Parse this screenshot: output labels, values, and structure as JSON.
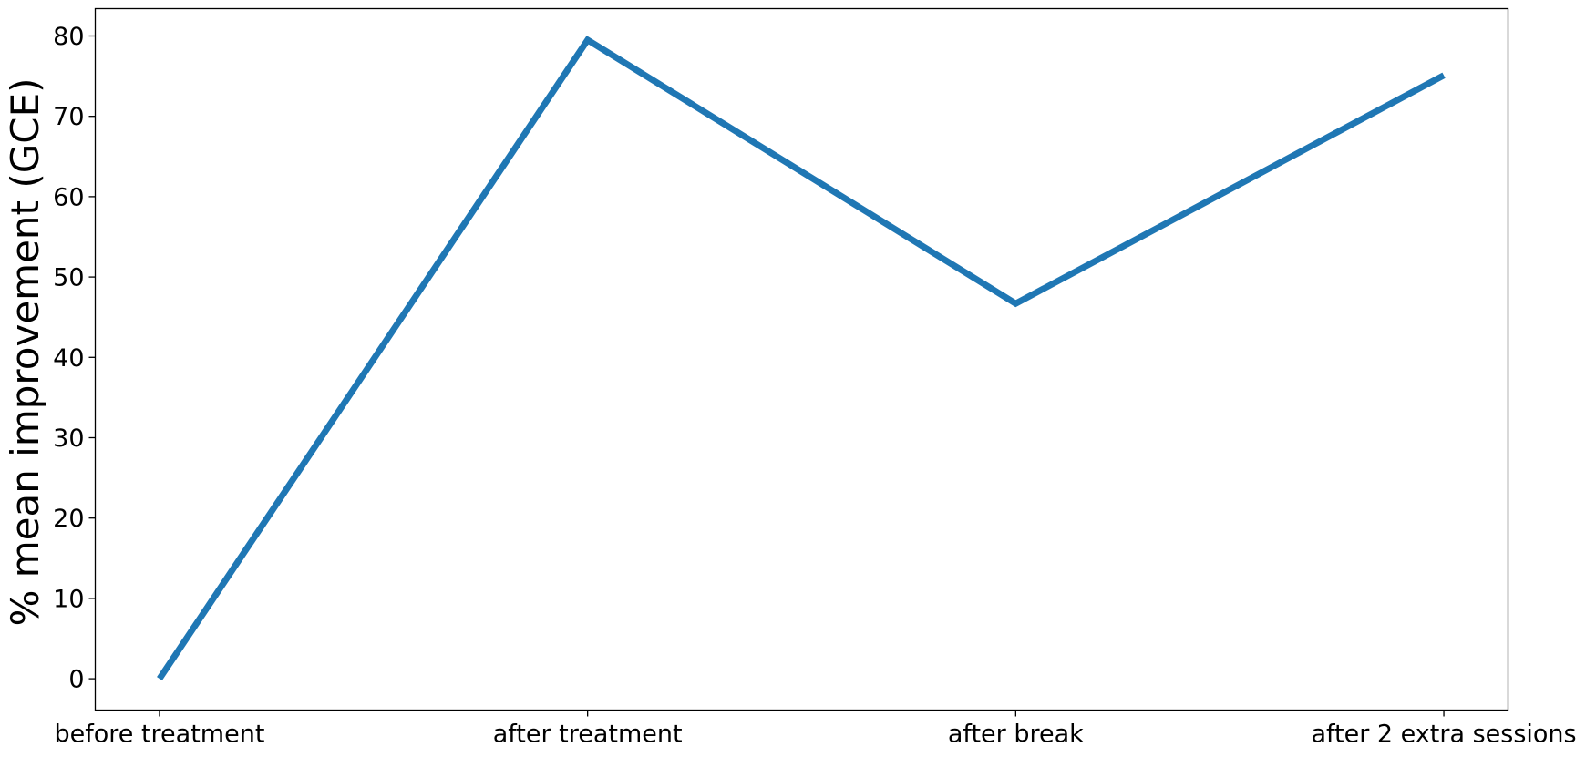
{
  "chart_data": {
    "type": "line",
    "categories": [
      "before treatment",
      "after treatment",
      "after break",
      "after 2 extra sessions"
    ],
    "series": [
      {
        "values": [
          0,
          79.5,
          46.7,
          75.1
        ],
        "color": "#1f77b4"
      }
    ],
    "xlabel": "",
    "ylabel": "% mean improvement (GCE)",
    "ylim": [
      -3.9,
      83.4
    ],
    "yticks": [
      0,
      10,
      20,
      30,
      40,
      50,
      60,
      70,
      80
    ],
    "grid": false,
    "legend": "none"
  }
}
